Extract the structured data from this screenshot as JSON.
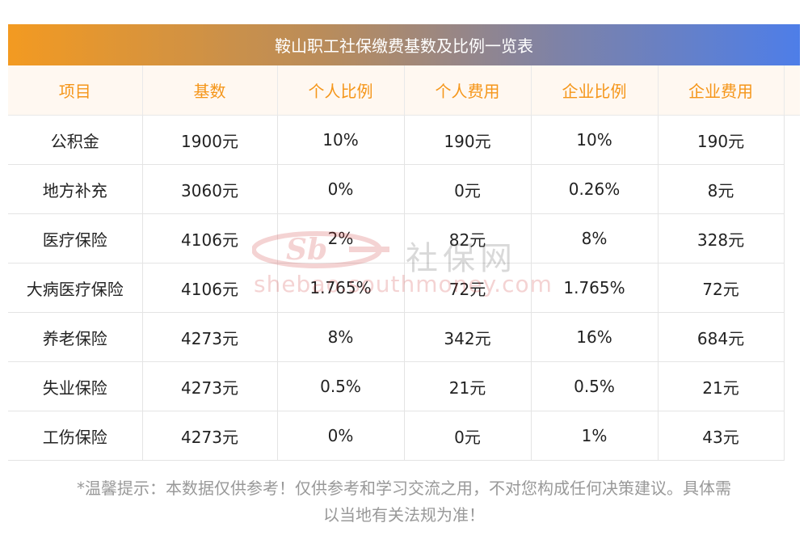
{
  "title": "鞍山职工社保缴费基数及比例一览表",
  "headers": [
    "项目",
    "基数",
    "个人比例",
    "个人费用",
    "企业比例",
    "企业费用"
  ],
  "rows": [
    [
      "公积金",
      "1900元",
      "10%",
      "190元",
      "10%",
      "190元"
    ],
    [
      "地方补充",
      "3060元",
      "0%",
      "0元",
      "0.26%",
      "8元"
    ],
    [
      "医疗保险",
      "4106元",
      "2%",
      "82元",
      "8%",
      "328元"
    ],
    [
      "大病医疗保险",
      "4106元",
      "1.765%",
      "72元",
      "1.765%",
      "72元"
    ],
    [
      "养老保险",
      "4273元",
      "8%",
      "342元",
      "16%",
      "684元"
    ],
    [
      "失业保险",
      "4273元",
      "0.5%",
      "21元",
      "0.5%",
      "21元"
    ],
    [
      "工伤保险",
      "4273元",
      "0%",
      "0元",
      "1%",
      "43元"
    ]
  ],
  "watermark": {
    "cn_text": "社保网",
    "url_text": "shebao.southmoney.com"
  },
  "footer": {
    "line1": "*温馨提示：本数据仅供参考！仅供参考和学习交流之用，不对您构成任何决策建议。具体需",
    "line2": "以当地有关法规为准！"
  },
  "colors": {
    "header_text": "#f5961a",
    "header_bg": "#fff8f1",
    "title_gradient_start": "#f39a21",
    "title_gradient_end": "#4e7ee8",
    "footer_text": "#999999"
  }
}
